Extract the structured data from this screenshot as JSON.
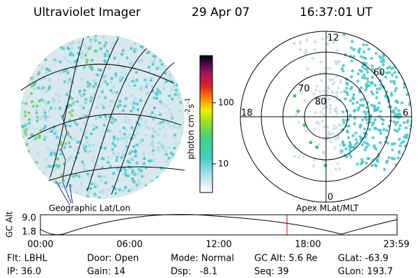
{
  "header": {
    "title": "Ultraviolet Imager",
    "date": "29 Apr 07",
    "time": "16:37:01 UT"
  },
  "left_panel": {
    "caption": "Geographic Lat/Lon"
  },
  "right_panel": {
    "caption": "Apex MLat/MLT",
    "mlt_labels": [
      "12",
      "18",
      "6",
      "0"
    ],
    "lat_labels": [
      "80",
      "70",
      "60"
    ]
  },
  "colorbar": {
    "label": "photon cm",
    "exp1": "-2",
    "unit2": "s",
    "exp2": "-1",
    "log": true,
    "lim": [
      3.4,
      590
    ],
    "ticks": [
      10,
      100
    ]
  },
  "orbit": {
    "ylabel": "GC Alt",
    "yticks": [
      {
        "value": 9,
        "label": "9.0"
      },
      {
        "value": 1.8,
        "label": "1.8"
      }
    ],
    "xticks": [
      "00:00",
      "06:00",
      "12:00",
      "18:00",
      "23:59"
    ]
  },
  "info": [
    [
      "Flt: LBHL",
      "Door: Open",
      "Mode: Normal",
      "GC Alt: 5.6 Re",
      "GLat: -63.9"
    ],
    [
      "IP: 36.0",
      "Gain: 14",
      "Dsp:   -8.1",
      "Seq: 39",
      "GLon: 193.7"
    ]
  ]
}
